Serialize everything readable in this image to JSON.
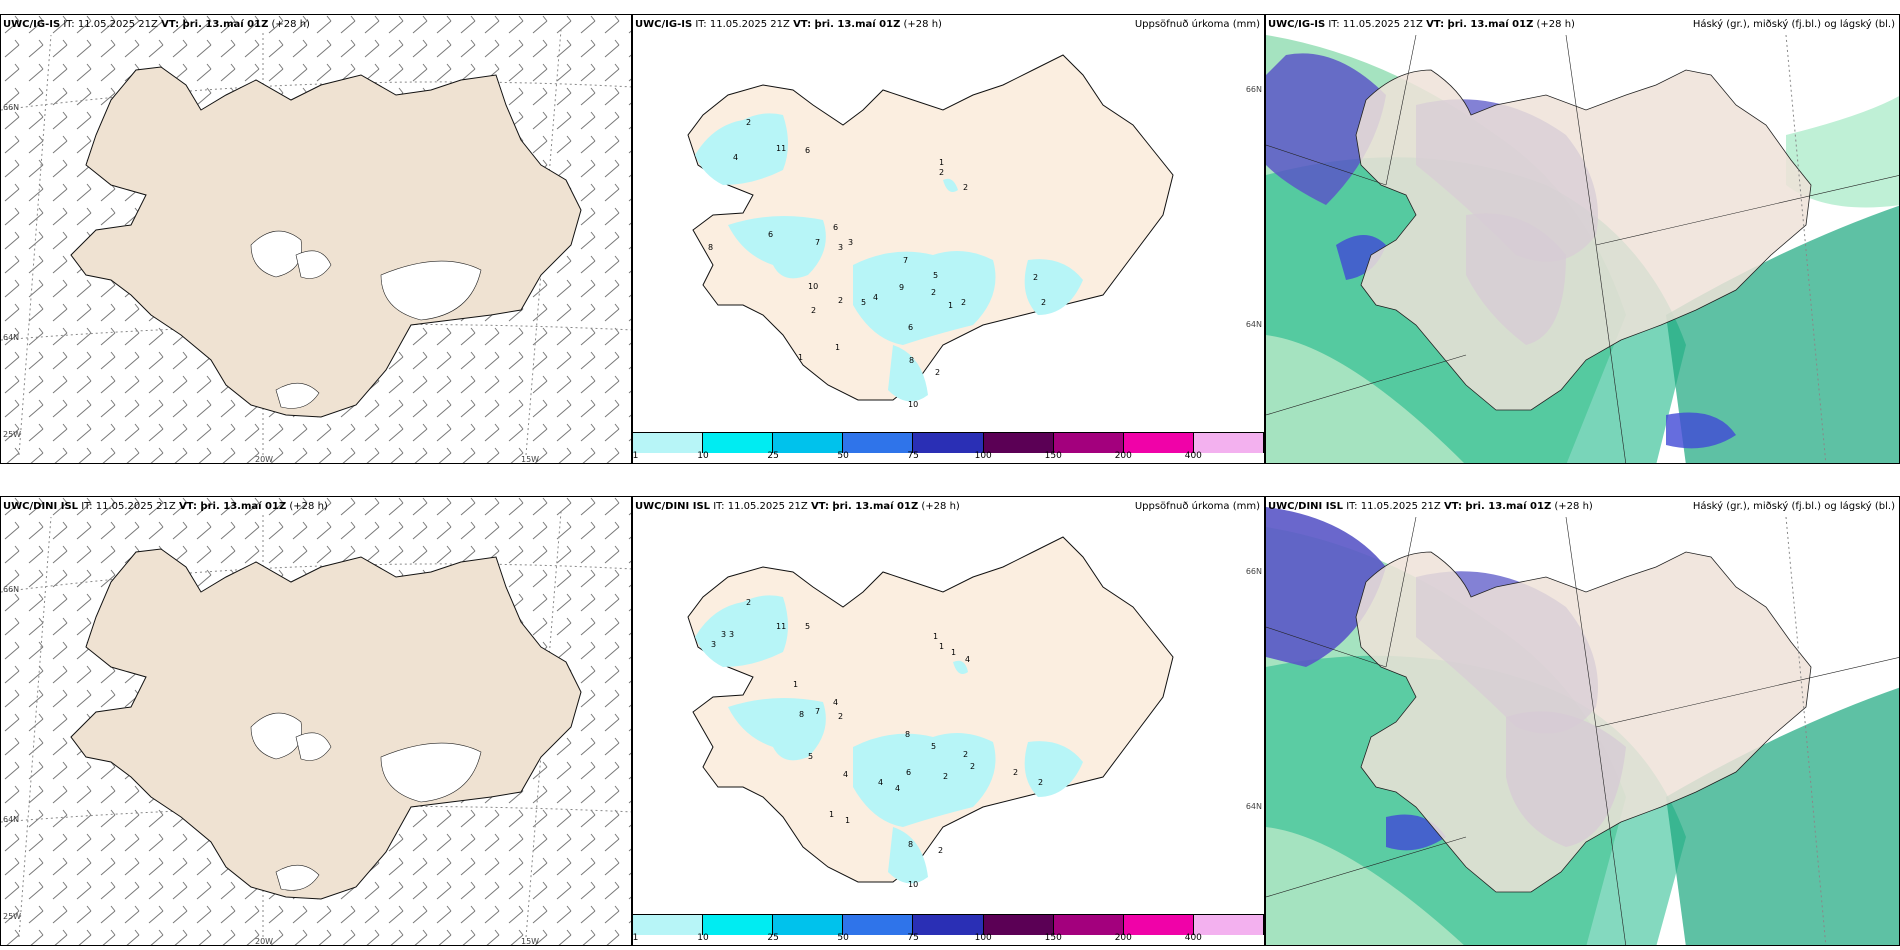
{
  "rows": [
    {
      "model": "UWC/IG-IS",
      "issue": "IT: 11.05.2025 21Z",
      "vt_label": "VT: þri. 13.maí 01Z",
      "lead": "(+28 h)",
      "precip_numbers": [
        "2",
        "4",
        "11",
        "6",
        "1",
        "2",
        "2",
        "6",
        "7",
        "8",
        "3",
        "6",
        "10",
        "7",
        "2",
        "9",
        "2",
        "5",
        "4",
        "2",
        "3",
        "5",
        "6",
        "1",
        "2",
        "2",
        "2",
        "1",
        "8",
        "2",
        "10",
        "1"
      ],
      "cloud_title": "Háský (gr.), miðský (fj.bl.) og lágský (bl.)"
    },
    {
      "model": "UWC/DINI ISL",
      "issue": "IT: 11.05.2025 21Z",
      "vt_label": "VT: þri. 13.maí 01Z",
      "lead": "(+28 h)",
      "precip_numbers": [
        "2",
        "3",
        "3",
        "3",
        "11",
        "5",
        "1",
        "4",
        "8",
        "7",
        "2",
        "1",
        "5",
        "4",
        "8",
        "4",
        "5",
        "2",
        "4",
        "6",
        "2",
        "2",
        "2",
        "1",
        "1",
        "8",
        "2",
        "2",
        "1",
        "1",
        "4",
        "10"
      ],
      "cloud_title": "Háský (gr.), miðský (fj.bl.) og lágský (bl.)"
    }
  ],
  "precip_title": "Uppsöfnuð úrkoma (mm)",
  "colorbar": {
    "labels": [
      "1",
      "10",
      "25",
      "50",
      "75",
      "100",
      "150",
      "200",
      "400"
    ],
    "colors": [
      "#b7f5f7",
      "#00ecf2",
      "#00c2ec",
      "#2f74ea",
      "#2a2fb5",
      "#5b0055",
      "#a3007d",
      "#f002a8",
      "#f3b1ef"
    ]
  },
  "axis_labels": {
    "lat_66": "66N",
    "lat_64": "64N",
    "lon_25": "25W",
    "lon_20": "20W",
    "lon_15": "15W"
  }
}
